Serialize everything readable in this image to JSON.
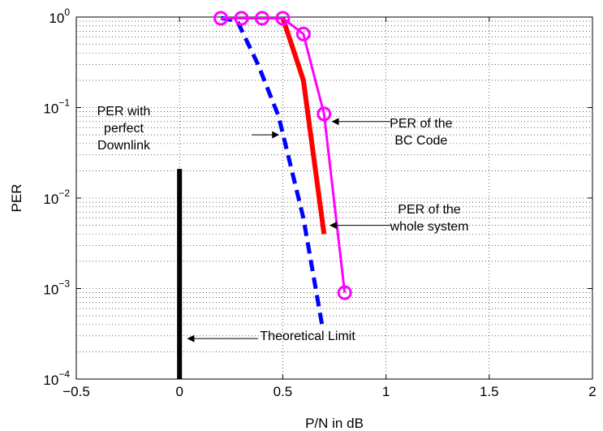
{
  "chart_data": {
    "type": "line",
    "xlabel": "P/N in dB",
    "ylabel": "PER",
    "xlim": [
      -0.5,
      2
    ],
    "ylim": [
      0.0001,
      1
    ],
    "yscale": "log",
    "grid": true,
    "x_ticks": [
      "−0.5",
      "0",
      "0.5",
      "1",
      "1.5",
      "2"
    ],
    "y_ticks": [
      {
        "base": "10",
        "exp": "−4",
        "value": 0.0001
      },
      {
        "base": "10",
        "exp": "−3",
        "value": 0.001
      },
      {
        "base": "10",
        "exp": "−2",
        "value": 0.01
      },
      {
        "base": "10",
        "exp": "−1",
        "value": 0.1
      },
      {
        "base": "10",
        "exp": "0",
        "value": 1
      }
    ],
    "series": [
      {
        "style": "dashed",
        "color": "#0000ff",
        "x": [
          0.2,
          0.28,
          0.38,
          0.48,
          0.6,
          0.69
        ],
        "y": [
          0.98,
          0.9,
          0.3,
          0.08,
          0.006,
          0.0004
        ]
      },
      {
        "style": "solid-thick",
        "color": "#ff0000",
        "x": [
          0.5,
          0.6,
          0.7
        ],
        "y": [
          0.98,
          0.2,
          0.004
        ]
      },
      {
        "style": "solid-circle",
        "color": "#ff00ff",
        "x": [
          0.2,
          0.3,
          0.4,
          0.5,
          0.6,
          0.7,
          0.8
        ],
        "y": [
          0.97,
          0.97,
          0.97,
          0.97,
          0.65,
          0.085,
          0.0009
        ]
      },
      {
        "style": "solid-thick",
        "color": "#000000",
        "x": [
          0,
          0
        ],
        "y": [
          0.0001,
          0.021
        ]
      }
    ],
    "annotations": [
      {
        "lines": [
          "PER with",
          "perfect",
          "Downlink"
        ],
        "arrow_from": [
          0.35,
          0.05
        ],
        "arrow_to": [
          0.48,
          0.05
        ]
      },
      {
        "lines": [
          "PER of the",
          "BC Code"
        ],
        "arrow_from": [
          1.02,
          0.07
        ],
        "arrow_to": [
          0.74,
          0.07
        ]
      },
      {
        "lines": [
          "PER of the",
          "whole system"
        ],
        "arrow_from": [
          1.02,
          0.005
        ],
        "arrow_to": [
          0.73,
          0.005
        ]
      },
      {
        "lines": [
          "Theoretical Limit"
        ],
        "arrow_from": [
          0.38,
          0.00028
        ],
        "arrow_to": [
          0.04,
          0.00028
        ]
      }
    ]
  }
}
